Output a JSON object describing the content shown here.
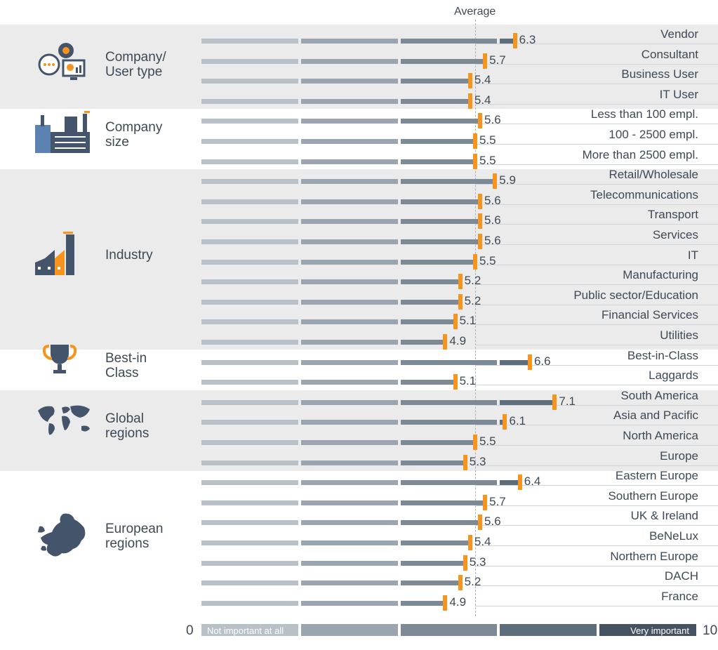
{
  "chart_data": {
    "type": "bar",
    "xlim": [
      0,
      10
    ],
    "average_label": "Average",
    "scale": {
      "min_label": "0",
      "max_label": "10",
      "low_label": "Not important at all",
      "high_label": "Very important"
    },
    "colors": {
      "marker": "#f7941d",
      "band": "#ebebeb",
      "segment_shades": [
        "#b8c0c8",
        "#9aa5b0",
        "#7d8a96",
        "#5e6d7b",
        "#445262"
      ]
    },
    "groups": [
      {
        "label": "Company/\nUser type",
        "icon": "gear-chat-chart-icon",
        "shaded": true,
        "rows": [
          {
            "label": "Vendor",
            "value": 6.3
          },
          {
            "label": "Consultant",
            "value": 5.7
          },
          {
            "label": "Business User",
            "value": 5.4
          },
          {
            "label": "IT User",
            "value": 5.4
          }
        ]
      },
      {
        "label": "Company\nsize",
        "icon": "buildings-icon",
        "shaded": false,
        "rows": [
          {
            "label": "Less than 100 empl.",
            "value": 5.6
          },
          {
            "label": "100 - 2500 empl.",
            "value": 5.5
          },
          {
            "label": "More than 2500 empl.",
            "value": 5.5
          }
        ]
      },
      {
        "label": "Industry",
        "icon": "factory-icon",
        "shaded": true,
        "rows": [
          {
            "label": "Retail/Wholesale",
            "value": 5.9
          },
          {
            "label": "Telecommunications",
            "value": 5.6
          },
          {
            "label": "Transport",
            "value": 5.6
          },
          {
            "label": "Services",
            "value": 5.6
          },
          {
            "label": "IT",
            "value": 5.5
          },
          {
            "label": "Manufacturing",
            "value": 5.2
          },
          {
            "label": "Public sector/Education",
            "value": 5.2
          },
          {
            "label": "Financial Services",
            "value": 5.1
          },
          {
            "label": "Utilities",
            "value": 4.9
          }
        ]
      },
      {
        "label": "Best-in\nClass",
        "icon": "trophy-icon",
        "shaded": false,
        "rows": [
          {
            "label": "Best-in-Class",
            "value": 6.6
          },
          {
            "label": "Laggards",
            "value": 5.1
          }
        ]
      },
      {
        "label": "Global\nregions",
        "icon": "world-map-icon",
        "shaded": true,
        "rows": [
          {
            "label": "South America",
            "value": 7.1
          },
          {
            "label": "Asia and Pacific",
            "value": 6.1
          },
          {
            "label": "North America",
            "value": 5.5
          },
          {
            "label": "Europe",
            "value": 5.3
          }
        ]
      },
      {
        "label": "European\nregions",
        "icon": "europe-map-icon",
        "shaded": false,
        "rows": [
          {
            "label": "Eastern Europe",
            "value": 6.4
          },
          {
            "label": "Southern Europe",
            "value": 5.7
          },
          {
            "label": "UK & Ireland",
            "value": 5.6
          },
          {
            "label": "BeNeLux",
            "value": 5.4
          },
          {
            "label": "Northern Europe",
            "value": 5.3
          },
          {
            "label": "DACH",
            "value": 5.2
          },
          {
            "label": "France",
            "value": 4.9
          }
        ]
      }
    ]
  }
}
